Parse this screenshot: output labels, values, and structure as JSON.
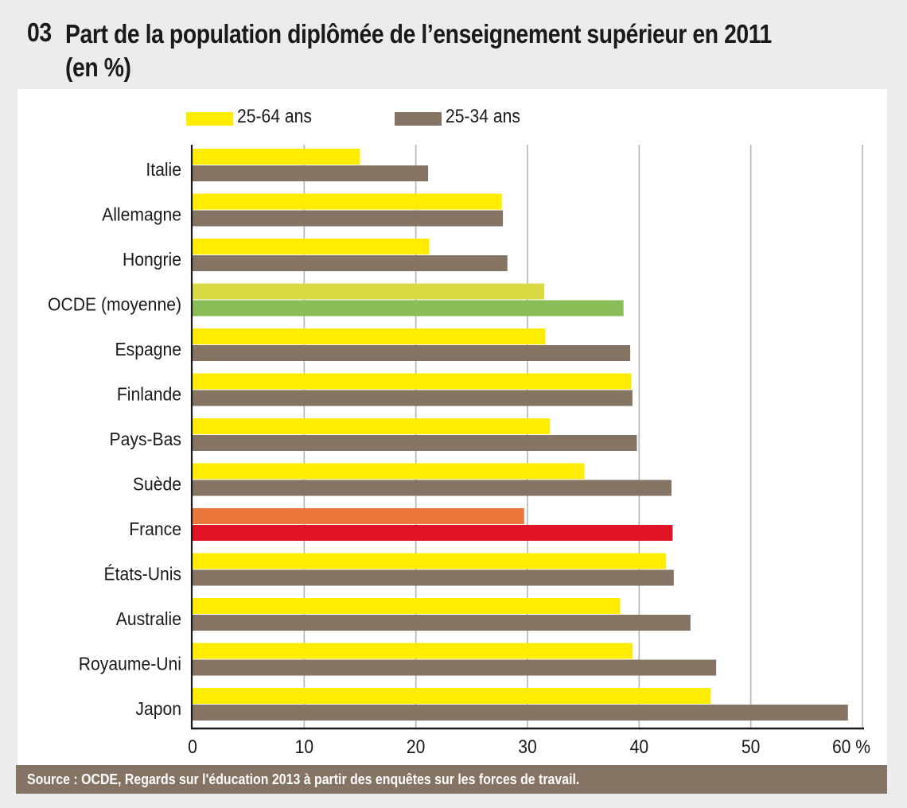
{
  "figure": {
    "number": "03",
    "title_line1": "Part de la population diplômée de l’enseignement supérieur en 2011",
    "title_line2": "(en %)",
    "source": "Source : OCDE, Regards sur l'éducation 2013 à partir des enquêtes sur les forces de travail."
  },
  "legend": [
    {
      "label": "25-64 ans",
      "color": "#ffec00"
    },
    {
      "label": "25-34 ans",
      "color": "#857464"
    }
  ],
  "chart_data": {
    "type": "bar",
    "orientation": "horizontal",
    "title": "Part de la population diplômée de l’enseignement supérieur en 2011 (en %)",
    "xlabel": "",
    "ylabel": "",
    "xlim": [
      0,
      60
    ],
    "x_ticks": [
      "0",
      "10",
      "20",
      "30",
      "40",
      "50",
      "60 %"
    ],
    "x_tick_values": [
      0,
      10,
      20,
      30,
      40,
      50,
      60
    ],
    "grid": "vertical",
    "legend_position": "top",
    "categories": [
      "Italie",
      "Allemagne",
      "Hongrie",
      "OCDE (moyenne)",
      "Espagne",
      "Finlande",
      "Pays-Bas",
      "Suède",
      "France",
      "États-Unis",
      "Australie",
      "Royaume-Uni",
      "Japon"
    ],
    "series": [
      {
        "name": "25-64 ans",
        "color": "#ffec00",
        "values": [
          15.0,
          27.7,
          21.2,
          31.5,
          31.6,
          39.3,
          32.0,
          35.1,
          29.7,
          42.4,
          38.3,
          39.4,
          46.4
        ]
      },
      {
        "name": "25-34 ans",
        "color": "#857464",
        "values": [
          21.1,
          27.8,
          28.2,
          38.6,
          39.2,
          39.4,
          39.8,
          42.9,
          43.0,
          43.1,
          44.6,
          46.9,
          58.7
        ]
      }
    ],
    "highlight_colors": {
      "OCDE (moyenne)": [
        "#d8da44",
        "#8abd57"
      ],
      "France": [
        "#ec773c",
        "#e01426"
      ]
    }
  }
}
